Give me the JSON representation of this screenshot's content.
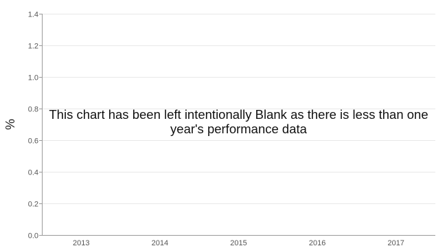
{
  "chart_data": {
    "type": "bar",
    "title": "",
    "xlabel": "",
    "ylabel": "%",
    "categories": [
      "2013",
      "2014",
      "2015",
      "2016",
      "2017"
    ],
    "series": [],
    "ylim": [
      0,
      1.4
    ],
    "yticks": [
      "0.0",
      "0.2",
      "0.4",
      "0.6",
      "0.8",
      "1.0",
      "1.2",
      "1.4"
    ],
    "grid": true,
    "legend": "none",
    "annotation": "This chart has been left intentionally Blank as there is less than one year's performance data"
  },
  "colors": {
    "grid": "#e8e8e8",
    "axis": "#999999"
  }
}
